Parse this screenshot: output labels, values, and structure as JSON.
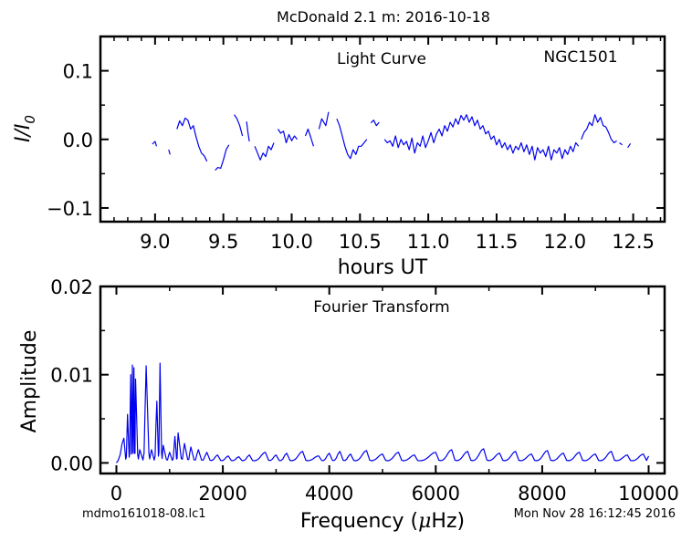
{
  "figure": {
    "title": "McDonald 2.1 m:  2016-10-18",
    "footer_left": "mdmo161018-08.lc1",
    "footer_right": "Mon Nov 28 16:12:45 2016"
  },
  "chart_data": [
    {
      "type": "line",
      "name": "light-curve",
      "annotation_left": "Light Curve",
      "annotation_right": "NGC1501",
      "xlabel": "hours UT",
      "ylabel_main": "I",
      "ylabel_div": "/",
      "ylabel_sub_base": "I",
      "ylabel_sub": "0",
      "xlim": [
        8.6,
        12.73
      ],
      "ylim": [
        -0.12,
        0.15
      ],
      "xticks": [
        9.0,
        9.5,
        10.0,
        10.5,
        11.0,
        11.5,
        12.0,
        12.5
      ],
      "xtick_labels": [
        "9.0",
        "9.5",
        "10.0",
        "10.5",
        "11.0",
        "11.5",
        "12.0",
        "12.5"
      ],
      "xminor": [
        8.7,
        8.8,
        8.9,
        9.1,
        9.2,
        9.3,
        9.4,
        9.6,
        9.7,
        9.8,
        9.9,
        10.1,
        10.2,
        10.3,
        10.4,
        10.6,
        10.7,
        10.8,
        10.9,
        11.1,
        11.2,
        11.3,
        11.4,
        11.6,
        11.7,
        11.8,
        11.9,
        12.1,
        12.2,
        12.3,
        12.4,
        12.6,
        12.7
      ],
      "yticks": [
        -0.1,
        0.0,
        0.1
      ],
      "ytick_labels": [
        "−0.1",
        "0.0",
        "0.1"
      ],
      "yminor": [
        -0.05,
        0.05
      ],
      "color": "#0000ee",
      "segments": [
        {
          "x": [
            8.98,
            9.0,
            9.01
          ],
          "y": [
            -0.007,
            -0.003,
            -0.01
          ]
        },
        {
          "x": [
            9.1,
            9.11
          ],
          "y": [
            -0.015,
            -0.022
          ]
        },
        {
          "x": [
            9.16,
            9.18,
            9.2,
            9.22,
            9.24,
            9.26,
            9.28,
            9.3,
            9.32,
            9.34,
            9.36,
            9.38
          ],
          "y": [
            0.015,
            0.027,
            0.02,
            0.031,
            0.028,
            0.015,
            0.02,
            0.004,
            -0.01,
            -0.02,
            -0.024,
            -0.032
          ]
        },
        {
          "x": [
            9.44,
            9.46,
            9.48,
            9.5,
            9.52,
            9.54
          ],
          "y": [
            -0.045,
            -0.041,
            -0.042,
            -0.03,
            -0.015,
            -0.008
          ]
        },
        {
          "x": [
            9.58,
            9.6,
            9.62,
            9.64
          ],
          "y": [
            0.036,
            0.03,
            0.02,
            0.005
          ]
        },
        {
          "x": [
            9.67,
            9.68,
            9.69
          ],
          "y": [
            0.026,
            0.01,
            -0.003
          ]
        },
        {
          "x": [
            9.73,
            9.75,
            9.77,
            9.79,
            9.81,
            9.83,
            9.85,
            9.87
          ],
          "y": [
            -0.01,
            -0.02,
            -0.03,
            -0.02,
            -0.025,
            -0.01,
            -0.015,
            -0.005
          ]
        },
        {
          "x": [
            9.9,
            9.92,
            9.94,
            9.96,
            9.98,
            10.0,
            10.02,
            10.04
          ],
          "y": [
            0.015,
            0.009,
            0.012,
            -0.005,
            0.007,
            -0.002,
            0.005,
            0.0
          ]
        },
        {
          "x": [
            10.1,
            10.12,
            10.14,
            10.16
          ],
          "y": [
            0.005,
            0.015,
            0.003,
            -0.01
          ]
        },
        {
          "x": [
            10.2,
            10.22,
            10.25,
            10.27
          ],
          "y": [
            0.015,
            0.03,
            0.02,
            0.04
          ]
        },
        {
          "x": [
            10.33,
            10.35,
            10.37,
            10.39,
            10.41,
            10.43,
            10.45,
            10.47,
            10.49,
            10.51,
            10.53,
            10.55
          ],
          "y": [
            0.03,
            0.02,
            0.005,
            -0.01,
            -0.022,
            -0.028,
            -0.015,
            -0.022,
            -0.01,
            -0.01,
            -0.005,
            0.0
          ]
        },
        {
          "x": [
            10.58,
            10.6,
            10.62,
            10.64
          ],
          "y": [
            0.024,
            0.028,
            0.02,
            0.025
          ]
        },
        {
          "x": [
            10.68,
            10.7,
            10.72,
            10.74,
            10.76,
            10.78,
            10.8,
            10.82,
            10.84,
            10.86,
            10.88,
            10.9,
            10.92,
            10.94,
            10.96,
            10.98,
            11.0,
            11.02,
            11.04,
            11.06,
            11.08,
            11.1,
            11.12,
            11.14,
            11.16,
            11.18,
            11.2,
            11.22,
            11.24,
            11.26,
            11.28,
            11.3,
            11.32,
            11.34,
            11.36,
            11.38,
            11.4,
            11.42,
            11.44,
            11.46,
            11.48,
            11.5,
            11.52,
            11.54,
            11.56,
            11.58,
            11.6,
            11.62,
            11.64,
            11.66,
            11.68,
            11.7,
            11.72,
            11.74,
            11.76,
            11.78,
            11.8,
            11.82,
            11.84,
            11.86,
            11.88,
            11.9,
            11.92,
            11.94,
            11.96,
            11.98,
            12.0,
            12.02,
            12.04,
            12.06,
            12.08,
            12.1
          ],
          "y": [
            0.0,
            -0.005,
            -0.002,
            -0.01,
            0.005,
            -0.012,
            0.0,
            -0.008,
            -0.003,
            -0.015,
            0.002,
            -0.02,
            -0.005,
            -0.01,
            0.005,
            -0.012,
            -0.002,
            0.01,
            -0.005,
            0.008,
            0.015,
            0.005,
            0.02,
            0.012,
            0.025,
            0.018,
            0.03,
            0.022,
            0.035,
            0.028,
            0.036,
            0.025,
            0.033,
            0.02,
            0.028,
            0.015,
            0.02,
            0.008,
            0.012,
            0.0,
            0.005,
            -0.008,
            0.0,
            -0.012,
            -0.005,
            -0.015,
            -0.008,
            -0.02,
            -0.01,
            -0.015,
            -0.005,
            -0.018,
            -0.008,
            -0.022,
            -0.01,
            -0.03,
            -0.012,
            -0.02,
            -0.015,
            -0.025,
            -0.01,
            -0.03,
            -0.015,
            -0.02,
            -0.012,
            -0.028,
            -0.015,
            -0.022,
            -0.01,
            -0.018,
            -0.005,
            -0.01
          ]
        },
        {
          "x": [
            12.12,
            12.14,
            12.16,
            12.18,
            12.2,
            12.22,
            12.24,
            12.26,
            12.28,
            12.3,
            12.32,
            12.34,
            12.36,
            12.38
          ],
          "y": [
            0.0,
            0.01,
            0.015,
            0.025,
            0.02,
            0.036,
            0.025,
            0.032,
            0.02,
            0.018,
            0.01,
            0.0,
            -0.005,
            -0.002
          ]
        },
        {
          "x": [
            12.4,
            12.42
          ],
          "y": [
            -0.005,
            -0.008
          ]
        },
        {
          "x": [
            12.46,
            12.48
          ],
          "y": [
            -0.012,
            -0.006
          ]
        }
      ]
    },
    {
      "type": "line",
      "name": "fourier-transform",
      "annotation": "Fourier Transform",
      "xlabel_prefix": "Frequency (",
      "xlabel_mu": "μ",
      "xlabel_suffix": "Hz)",
      "ylabel": "Amplitude",
      "xlim": [
        -300,
        10300
      ],
      "ylim": [
        -0.0012,
        0.02
      ],
      "xticks": [
        0,
        2000,
        4000,
        6000,
        8000,
        10000
      ],
      "xtick_labels": [
        "0",
        "2000",
        "4000",
        "6000",
        "8000",
        "10000"
      ],
      "xminor": [
        1000,
        3000,
        5000,
        7000,
        9000
      ],
      "yticks": [
        0.0,
        0.01,
        0.02
      ],
      "ytick_labels": [
        "0.00",
        "0.01",
        "0.02"
      ],
      "yminor": [
        0.005,
        0.015
      ],
      "color": "#0000ee",
      "peaks": [
        [
          140,
          0.0028
        ],
        [
          210,
          0.0055
        ],
        [
          270,
          0.01
        ],
        [
          300,
          0.0111
        ],
        [
          330,
          0.0108
        ],
        [
          360,
          0.0095
        ],
        [
          440,
          0.0015
        ],
        [
          560,
          0.011
        ],
        [
          660,
          0.0015
        ],
        [
          760,
          0.007
        ],
        [
          820,
          0.0113
        ],
        [
          880,
          0.002
        ],
        [
          1000,
          0.0012
        ],
        [
          1100,
          0.003
        ],
        [
          1160,
          0.0034
        ],
        [
          1280,
          0.0022
        ],
        [
          1400,
          0.0018
        ],
        [
          1540,
          0.0015
        ],
        [
          1700,
          0.0012
        ],
        [
          1900,
          0.0009
        ],
        [
          2100,
          0.0008
        ],
        [
          2300,
          0.0007
        ],
        [
          2500,
          0.0009
        ],
        [
          2800,
          0.0012
        ],
        [
          3000,
          0.0009
        ],
        [
          3200,
          0.0011
        ],
        [
          3500,
          0.0013
        ],
        [
          3800,
          0.0008
        ],
        [
          4000,
          0.0011
        ],
        [
          4200,
          0.0013
        ],
        [
          4400,
          0.001
        ],
        [
          4700,
          0.0014
        ],
        [
          5000,
          0.001
        ],
        [
          5300,
          0.0012
        ],
        [
          5600,
          0.0009
        ],
        [
          6000,
          0.0012
        ],
        [
          6300,
          0.0015
        ],
        [
          6600,
          0.0013
        ],
        [
          6900,
          0.0016
        ],
        [
          7200,
          0.0011
        ],
        [
          7500,
          0.0013
        ],
        [
          7800,
          0.001
        ],
        [
          8100,
          0.0014
        ],
        [
          8400,
          0.0011
        ],
        [
          8700,
          0.0012
        ],
        [
          9000,
          0.001
        ],
        [
          9300,
          0.0013
        ],
        [
          9600,
          0.0009
        ],
        [
          9900,
          0.001
        ]
      ]
    }
  ]
}
